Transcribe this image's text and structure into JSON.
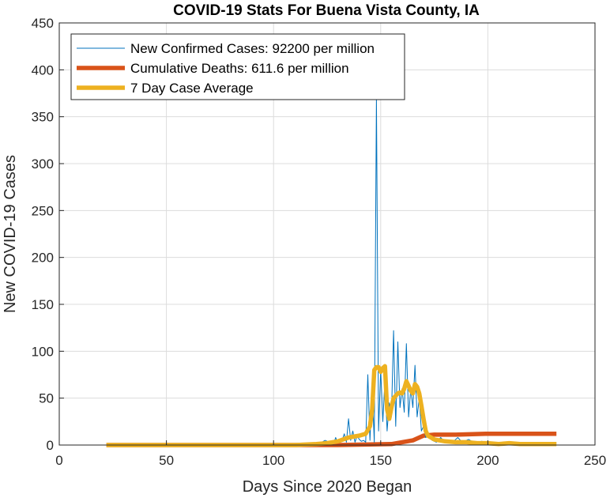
{
  "chart_data": {
    "type": "line",
    "title": "COVID-19 Stats For Buena Vista County, IA",
    "xlabel": "Days Since 2020 Began",
    "ylabel": "New COVID-19 Cases",
    "xlim": [
      0,
      250
    ],
    "ylim": [
      0,
      450
    ],
    "xticks": [
      0,
      50,
      100,
      150,
      200,
      250
    ],
    "yticks": [
      0,
      50,
      100,
      150,
      200,
      250,
      300,
      350,
      400,
      450
    ],
    "grid": true,
    "legend_position": "top-left",
    "series": [
      {
        "name": "New Confirmed Cases: 92200 per million",
        "color": "#0072BD",
        "line_weight": "thin",
        "points": [
          [
            22,
            0
          ],
          [
            100,
            0
          ],
          [
            110,
            0
          ],
          [
            118,
            1
          ],
          [
            122,
            2
          ],
          [
            124,
            5
          ],
          [
            126,
            3
          ],
          [
            128,
            1
          ],
          [
            129,
            8
          ],
          [
            130,
            2
          ],
          [
            132,
            5
          ],
          [
            133,
            12
          ],
          [
            134,
            3
          ],
          [
            135,
            28
          ],
          [
            136,
            5
          ],
          [
            137,
            15
          ],
          [
            138,
            3
          ],
          [
            139,
            10
          ],
          [
            140,
            6
          ],
          [
            141,
            4
          ],
          [
            142,
            5
          ],
          [
            143,
            3
          ],
          [
            144,
            75
          ],
          [
            145,
            5
          ],
          [
            146,
            60
          ],
          [
            147,
            3
          ],
          [
            148,
            370
          ],
          [
            149,
            15
          ],
          [
            150,
            80
          ],
          [
            151,
            25
          ],
          [
            152,
            70
          ],
          [
            153,
            15
          ],
          [
            154,
            45
          ],
          [
            155,
            30
          ],
          [
            156,
            122
          ],
          [
            157,
            20
          ],
          [
            158,
            110
          ],
          [
            159,
            40
          ],
          [
            160,
            60
          ],
          [
            161,
            35
          ],
          [
            162,
            108
          ],
          [
            163,
            30
          ],
          [
            164,
            60
          ],
          [
            165,
            40
          ],
          [
            166,
            85
          ],
          [
            167,
            30
          ],
          [
            168,
            50
          ],
          [
            169,
            15
          ],
          [
            170,
            20
          ],
          [
            171,
            8
          ],
          [
            172,
            10
          ],
          [
            174,
            5
          ],
          [
            176,
            3
          ],
          [
            178,
            8
          ],
          [
            180,
            3
          ],
          [
            183,
            2
          ],
          [
            186,
            8
          ],
          [
            188,
            3
          ],
          [
            191,
            6
          ],
          [
            194,
            2
          ],
          [
            197,
            4
          ],
          [
            200,
            3
          ],
          [
            205,
            2
          ],
          [
            210,
            2
          ],
          [
            215,
            1
          ],
          [
            220,
            2
          ],
          [
            225,
            1
          ],
          [
            232,
            2
          ]
        ]
      },
      {
        "name": "Cumulative Deaths: 611.6 per million",
        "color": "#D95319",
        "line_weight": "thick",
        "points": [
          [
            22,
            0
          ],
          [
            130,
            0
          ],
          [
            155,
            1
          ],
          [
            160,
            3
          ],
          [
            165,
            5
          ],
          [
            168,
            8
          ],
          [
            170,
            10
          ],
          [
            175,
            11
          ],
          [
            185,
            11
          ],
          [
            199,
            12
          ],
          [
            232,
            12
          ]
        ]
      },
      {
        "name": "7 Day Case Average",
        "color": "#EDB120",
        "line_weight": "thick",
        "points": [
          [
            22,
            0
          ],
          [
            110,
            0
          ],
          [
            120,
            1
          ],
          [
            125,
            2
          ],
          [
            130,
            4
          ],
          [
            135,
            8
          ],
          [
            140,
            10
          ],
          [
            143,
            12
          ],
          [
            145,
            20
          ],
          [
            146,
            38
          ],
          [
            147,
            80
          ],
          [
            148,
            83
          ],
          [
            149,
            83
          ],
          [
            150,
            78
          ],
          [
            151,
            82
          ],
          [
            152,
            84
          ],
          [
            152.5,
            60
          ],
          [
            153,
            38
          ],
          [
            154,
            28
          ],
          [
            155,
            40
          ],
          [
            156,
            50
          ],
          [
            158,
            55
          ],
          [
            159,
            56
          ],
          [
            160,
            55
          ],
          [
            161,
            60
          ],
          [
            162,
            68
          ],
          [
            163,
            63
          ],
          [
            164,
            58
          ],
          [
            165,
            55
          ],
          [
            166,
            65
          ],
          [
            167,
            62
          ],
          [
            168,
            55
          ],
          [
            169,
            42
          ],
          [
            170,
            28
          ],
          [
            171,
            15
          ],
          [
            172,
            10
          ],
          [
            175,
            6
          ],
          [
            180,
            4
          ],
          [
            185,
            3
          ],
          [
            190,
            3
          ],
          [
            195,
            2
          ],
          [
            200,
            2
          ],
          [
            205,
            1
          ],
          [
            210,
            2
          ],
          [
            215,
            1
          ],
          [
            220,
            1
          ],
          [
            232,
            1
          ]
        ]
      }
    ]
  }
}
